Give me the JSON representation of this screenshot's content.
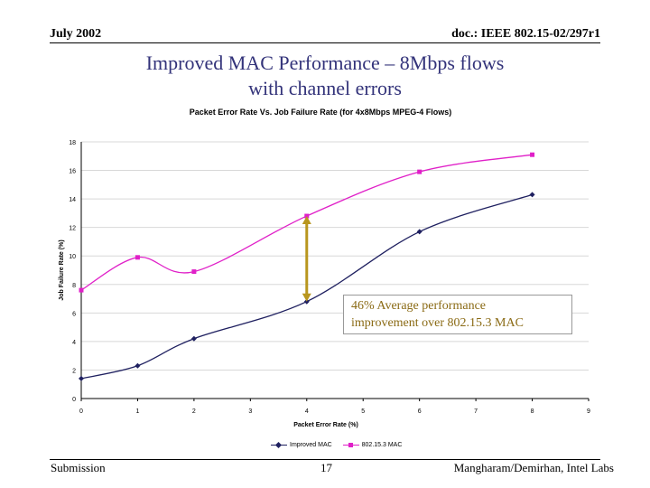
{
  "header": {
    "left": "July 2002",
    "right": "doc.: IEEE 802.15-02/297r1"
  },
  "slide_title": {
    "line1": "Improved MAC Performance – 8Mbps flows",
    "line2": "with channel errors"
  },
  "annotation": {
    "line1": "46% Average performance",
    "line2": "improvement over 802.15.3 MAC",
    "color": "#8a6a14"
  },
  "footer": {
    "left": "Submission",
    "center": "17",
    "right": "Mangharam/Demirhan, Intel Labs"
  },
  "chart_data": {
    "type": "line",
    "title": "Packet Error Rate Vs. Job Failure Rate (for 4x8Mbps MPEG-4 Flows)",
    "xlabel": "Packet Error Rate (%)",
    "ylabel": "Job Failure Rate (%)",
    "xlim": [
      0,
      9
    ],
    "ylim": [
      0,
      18
    ],
    "xticks": [
      "0",
      "1",
      "2",
      "3",
      "4",
      "5",
      "6",
      "7",
      "8",
      "9"
    ],
    "yticks": [
      "0",
      "2",
      "4",
      "6",
      "8",
      "10",
      "12",
      "14",
      "16",
      "18"
    ],
    "grid": true,
    "legend_position": "bottom",
    "series": [
      {
        "name": "Improved MAC",
        "color": "#1f2060",
        "marker": "diamond",
        "x": [
          0,
          1,
          2,
          4,
          6,
          8
        ],
        "y": [
          1.4,
          2.3,
          4.2,
          6.8,
          11.7,
          14.3
        ]
      },
      {
        "name": "802.15.3 MAC",
        "color": "#e020c8",
        "marker": "square",
        "x": [
          0,
          1,
          2,
          4,
          6,
          8
        ],
        "y": [
          7.6,
          9.9,
          8.9,
          12.8,
          15.9,
          17.1
        ]
      }
    ],
    "arrow": {
      "x": 4,
      "y_from": 6.8,
      "y_to": 12.8,
      "color": "#b8961e"
    }
  }
}
